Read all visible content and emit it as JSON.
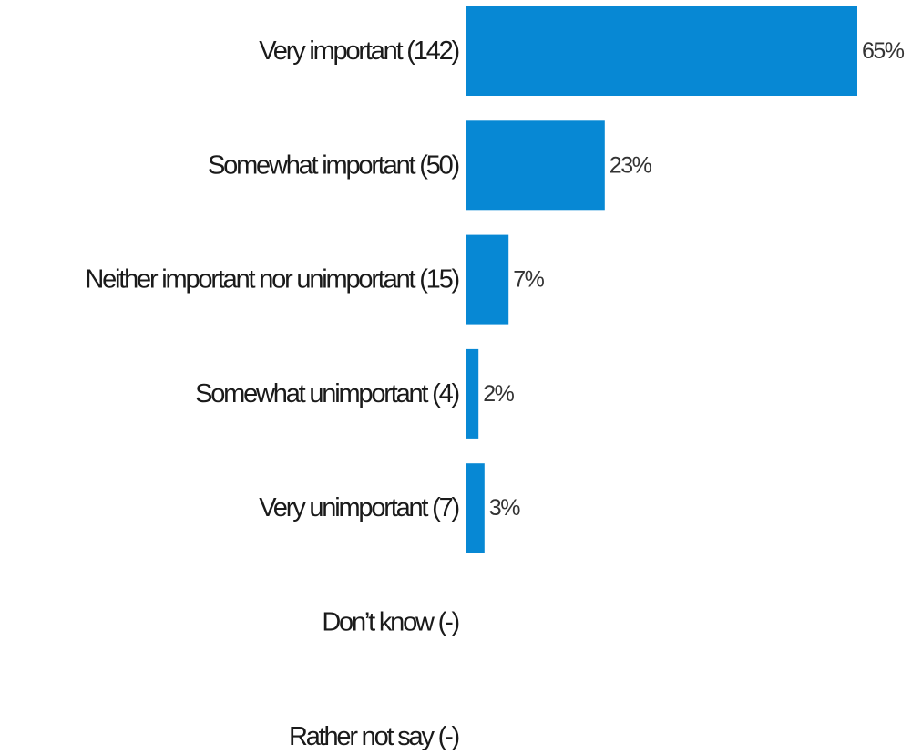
{
  "chart_data": {
    "type": "bar",
    "orientation": "horizontal",
    "categories": [
      "Very important (142)",
      "Somewhat important (50)",
      "Neither important nor unimportant (15)",
      "Somewhat unimportant (4)",
      "Very unimportant (7)",
      "Don’t know (-)",
      "Rather not say (-)"
    ],
    "values": [
      65,
      23,
      7,
      2,
      3,
      null,
      null
    ],
    "value_labels": [
      "65%",
      "23%",
      "7%",
      "2%",
      "3%",
      "",
      ""
    ],
    "unit": "%",
    "xlim": [
      0,
      65
    ],
    "grid": false,
    "legend": "none",
    "colors": {
      "bar": "#0788d4",
      "category_text": "#1a1a1a",
      "value_text": "#333333",
      "background": "#ffffff"
    }
  }
}
